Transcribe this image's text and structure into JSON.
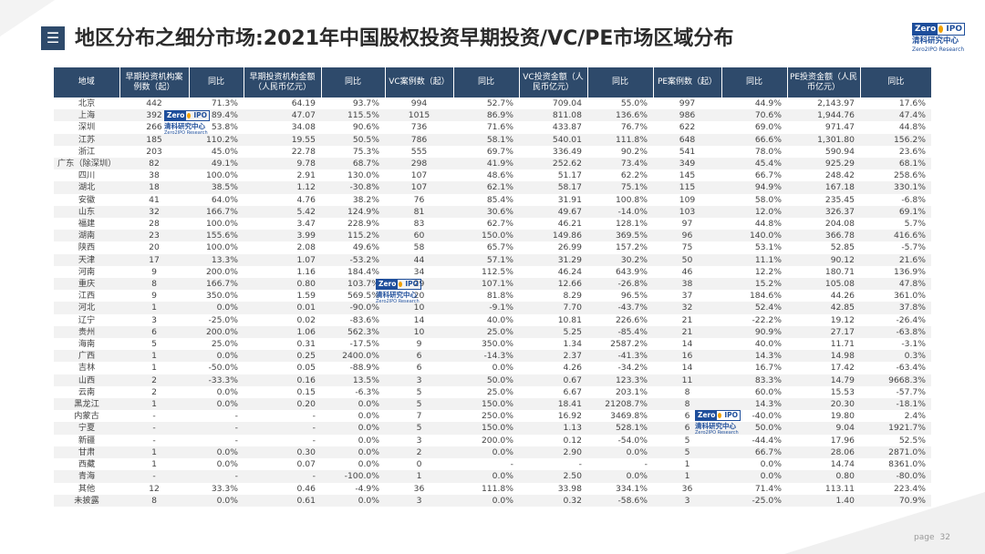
{
  "header": {
    "title": "地区分布之细分市场:2021年中国股权投资早期投资/VC/PE市场区域分布",
    "menu_glyph": "☰"
  },
  "logo": {
    "zero": "Zero",
    "ipo": "IPO",
    "cn": "清科研究中心",
    "en": "Zero2IPO Research"
  },
  "table": {
    "columns": [
      "地域",
      "早期投资机构案例数（起）",
      "同比",
      "早期投资机构金额（人民币亿元）",
      "同比",
      "VC案例数（起）",
      "同比",
      "VC投资金额（人民币亿元）",
      "同比",
      "PE案例数（起）",
      "同比",
      "PE投资金额（人民币亿元）",
      "同比"
    ],
    "rows": [
      [
        "北京",
        "442",
        "71.3%",
        "64.19",
        "93.7%",
        "994",
        "52.7%",
        "709.04",
        "55.0%",
        "997",
        "44.9%",
        "2,143.97",
        "17.6%"
      ],
      [
        "上海",
        "392",
        "89.4%",
        "47.07",
        "115.5%",
        "1015",
        "86.9%",
        "811.08",
        "136.6%",
        "986",
        "70.6%",
        "1,944.76",
        "47.4%"
      ],
      [
        "深圳",
        "266",
        "53.8%",
        "34.08",
        "90.6%",
        "736",
        "71.6%",
        "433.87",
        "76.7%",
        "622",
        "69.0%",
        "971.47",
        "44.8%"
      ],
      [
        "江苏",
        "185",
        "110.2%",
        "19.55",
        "50.5%",
        "786",
        "58.1%",
        "540.01",
        "111.8%",
        "648",
        "66.6%",
        "1,301.80",
        "156.2%"
      ],
      [
        "浙江",
        "203",
        "45.0%",
        "22.78",
        "75.3%",
        "555",
        "69.7%",
        "336.49",
        "90.2%",
        "541",
        "78.0%",
        "590.94",
        "23.6%"
      ],
      [
        "广东（除深圳）",
        "82",
        "49.1%",
        "9.78",
        "68.7%",
        "298",
        "41.9%",
        "252.62",
        "73.4%",
        "349",
        "45.4%",
        "925.29",
        "68.1%"
      ],
      [
        "四川",
        "38",
        "100.0%",
        "2.91",
        "130.0%",
        "107",
        "48.6%",
        "51.17",
        "62.2%",
        "145",
        "66.7%",
        "248.42",
        "258.6%"
      ],
      [
        "湖北",
        "18",
        "38.5%",
        "1.12",
        "-30.8%",
        "107",
        "62.1%",
        "58.17",
        "75.1%",
        "115",
        "94.9%",
        "167.18",
        "330.1%"
      ],
      [
        "安徽",
        "41",
        "64.0%",
        "4.76",
        "38.2%",
        "76",
        "85.4%",
        "31.91",
        "100.8%",
        "109",
        "58.0%",
        "235.45",
        "-6.8%"
      ],
      [
        "山东",
        "32",
        "166.7%",
        "5.42",
        "124.9%",
        "81",
        "30.6%",
        "49.67",
        "-14.0%",
        "103",
        "12.0%",
        "326.37",
        "69.1%"
      ],
      [
        "福建",
        "28",
        "100.0%",
        "3.47",
        "228.9%",
        "83",
        "62.7%",
        "46.21",
        "128.1%",
        "97",
        "44.8%",
        "204.08",
        "5.7%"
      ],
      [
        "湖南",
        "23",
        "155.6%",
        "3.99",
        "115.2%",
        "60",
        "150.0%",
        "149.86",
        "369.5%",
        "96",
        "140.0%",
        "366.78",
        "416.6%"
      ],
      [
        "陕西",
        "20",
        "100.0%",
        "2.08",
        "49.6%",
        "58",
        "65.7%",
        "26.99",
        "157.2%",
        "75",
        "53.1%",
        "52.85",
        "-5.7%"
      ],
      [
        "天津",
        "17",
        "13.3%",
        "1.07",
        "-53.2%",
        "44",
        "57.1%",
        "31.29",
        "30.2%",
        "50",
        "11.1%",
        "90.12",
        "21.6%"
      ],
      [
        "河南",
        "9",
        "200.0%",
        "1.16",
        "184.4%",
        "34",
        "112.5%",
        "46.24",
        "643.9%",
        "46",
        "12.2%",
        "180.71",
        "136.9%"
      ],
      [
        "重庆",
        "8",
        "166.7%",
        "0.80",
        "103.7%",
        "29",
        "107.1%",
        "12.66",
        "-26.8%",
        "38",
        "15.2%",
        "105.08",
        "47.8%"
      ],
      [
        "江西",
        "9",
        "350.0%",
        "1.59",
        "569.5%",
        "20",
        "81.8%",
        "8.29",
        "96.5%",
        "37",
        "184.6%",
        "44.26",
        "361.0%"
      ],
      [
        "河北",
        "1",
        "0.0%",
        "0.01",
        "-90.0%",
        "10",
        "-9.1%",
        "7.70",
        "-43.7%",
        "32",
        "52.4%",
        "42.85",
        "37.8%"
      ],
      [
        "辽宁",
        "3",
        "-25.0%",
        "0.02",
        "-83.6%",
        "14",
        "40.0%",
        "10.81",
        "226.6%",
        "21",
        "-22.2%",
        "19.12",
        "-26.4%"
      ],
      [
        "贵州",
        "6",
        "200.0%",
        "1.06",
        "562.3%",
        "10",
        "25.0%",
        "5.25",
        "-85.4%",
        "21",
        "90.9%",
        "27.17",
        "-63.8%"
      ],
      [
        "海南",
        "5",
        "25.0%",
        "0.31",
        "-17.5%",
        "9",
        "350.0%",
        "1.34",
        "2587.2%",
        "14",
        "40.0%",
        "11.71",
        "-3.1%"
      ],
      [
        "广西",
        "1",
        "0.0%",
        "0.25",
        "2400.0%",
        "6",
        "-14.3%",
        "2.37",
        "-41.3%",
        "16",
        "14.3%",
        "14.98",
        "0.3%"
      ],
      [
        "吉林",
        "1",
        "-50.0%",
        "0.05",
        "-88.9%",
        "6",
        "0.0%",
        "4.26",
        "-34.2%",
        "14",
        "16.7%",
        "17.42",
        "-63.4%"
      ],
      [
        "山西",
        "2",
        "-33.3%",
        "0.16",
        "13.5%",
        "3",
        "50.0%",
        "0.67",
        "123.3%",
        "11",
        "83.3%",
        "14.79",
        "9668.3%"
      ],
      [
        "云南",
        "2",
        "0.0%",
        "0.15",
        "-6.3%",
        "5",
        "25.0%",
        "6.67",
        "203.1%",
        "8",
        "60.0%",
        "15.53",
        "-57.7%"
      ],
      [
        "黑龙江",
        "1",
        "0.0%",
        "0.20",
        "0.0%",
        "5",
        "150.0%",
        "18.41",
        "21208.7%",
        "8",
        "14.3%",
        "20.30",
        "-18.1%"
      ],
      [
        "内蒙古",
        "-",
        "-",
        "-",
        "0.0%",
        "7",
        "250.0%",
        "16.92",
        "3469.8%",
        "6",
        "-40.0%",
        "19.80",
        "2.4%"
      ],
      [
        "宁夏",
        "-",
        "-",
        "-",
        "0.0%",
        "5",
        "150.0%",
        "1.13",
        "528.1%",
        "6",
        "50.0%",
        "9.04",
        "1921.7%"
      ],
      [
        "新疆",
        "-",
        "-",
        "-",
        "0.0%",
        "3",
        "200.0%",
        "0.12",
        "-54.0%",
        "5",
        "-44.4%",
        "17.96",
        "52.5%"
      ],
      [
        "甘肃",
        "1",
        "0.0%",
        "0.30",
        "0.0%",
        "2",
        "0.0%",
        "2.90",
        "0.0%",
        "5",
        "66.7%",
        "28.06",
        "2871.0%"
      ],
      [
        "西藏",
        "1",
        "0.0%",
        "0.07",
        "0.0%",
        "0",
        "-",
        "-",
        "-",
        "1",
        "0.0%",
        "14.74",
        "8361.0%"
      ],
      [
        "青海",
        "-",
        "-",
        "-",
        "-100.0%",
        "1",
        "0.0%",
        "2.50",
        "0.0%",
        "1",
        "0.0%",
        "0.80",
        "-80.0%"
      ],
      [
        "其他",
        "12",
        "33.3%",
        "0.46",
        "-4.9%",
        "36",
        "111.8%",
        "33.98",
        "334.1%",
        "36",
        "71.4%",
        "113.11",
        "223.4%"
      ],
      [
        "未披露",
        "8",
        "0.0%",
        "0.61",
        "0.0%",
        "3",
        "0.0%",
        "0.32",
        "-58.6%",
        "3",
        "-25.0%",
        "1.40",
        "70.9%"
      ]
    ]
  },
  "footer": {
    "page_label": "page",
    "page_number": "32"
  }
}
